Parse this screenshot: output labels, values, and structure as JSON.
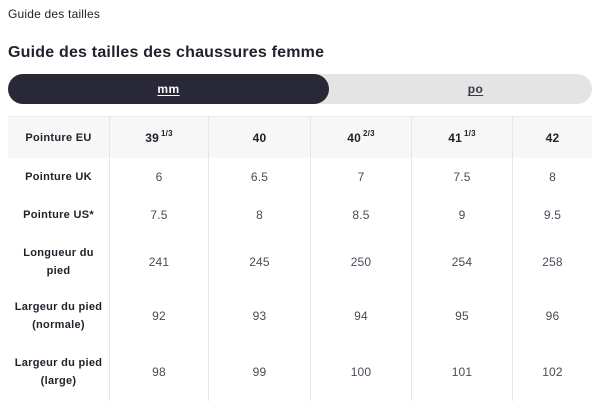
{
  "page": {
    "breadcrumb": "Guide des tailles",
    "title": "Guide des tailles des chaussures femme"
  },
  "unit_toggle": {
    "options": [
      {
        "label": "mm",
        "selected": true
      },
      {
        "label": "po",
        "selected": false
      }
    ]
  },
  "colors": {
    "accent_dark": "#282836",
    "toggle_track": "#e4e4e4",
    "header_row_bg": "#f7f7f7",
    "cell_border": "#e6e6e6",
    "text_primary": "#22222c",
    "text_value": "#4b4b57",
    "active_option_text": "#ffffff"
  },
  "size_table": {
    "rows": [
      {
        "label": "Pointure EU",
        "header": true,
        "cells": [
          {
            "base": "39",
            "sup": "1/3"
          },
          {
            "base": "40",
            "sup": ""
          },
          {
            "base": "40",
            "sup": "2/3"
          },
          {
            "base": "41",
            "sup": "1/3"
          },
          {
            "base": "42",
            "sup": ""
          }
        ]
      },
      {
        "label": "Pointure UK",
        "cells": [
          {
            "base": "6"
          },
          {
            "base": "6.5"
          },
          {
            "base": "7"
          },
          {
            "base": "7.5"
          },
          {
            "base": "8"
          }
        ]
      },
      {
        "label": "Pointure US*",
        "cells": [
          {
            "base": "7.5"
          },
          {
            "base": "8"
          },
          {
            "base": "8.5"
          },
          {
            "base": "9"
          },
          {
            "base": "9.5"
          }
        ]
      },
      {
        "label": "Longueur du pied",
        "cells": [
          {
            "base": "241"
          },
          {
            "base": "245"
          },
          {
            "base": "250"
          },
          {
            "base": "254"
          },
          {
            "base": "258"
          }
        ]
      },
      {
        "label": "Largeur du pied (normale)",
        "cells": [
          {
            "base": "92"
          },
          {
            "base": "93"
          },
          {
            "base": "94"
          },
          {
            "base": "95"
          },
          {
            "base": "96"
          }
        ]
      },
      {
        "label": "Largeur du pied (large)",
        "cells": [
          {
            "base": "98"
          },
          {
            "base": "99"
          },
          {
            "base": "100"
          },
          {
            "base": "101"
          },
          {
            "base": "102"
          }
        ]
      }
    ]
  }
}
